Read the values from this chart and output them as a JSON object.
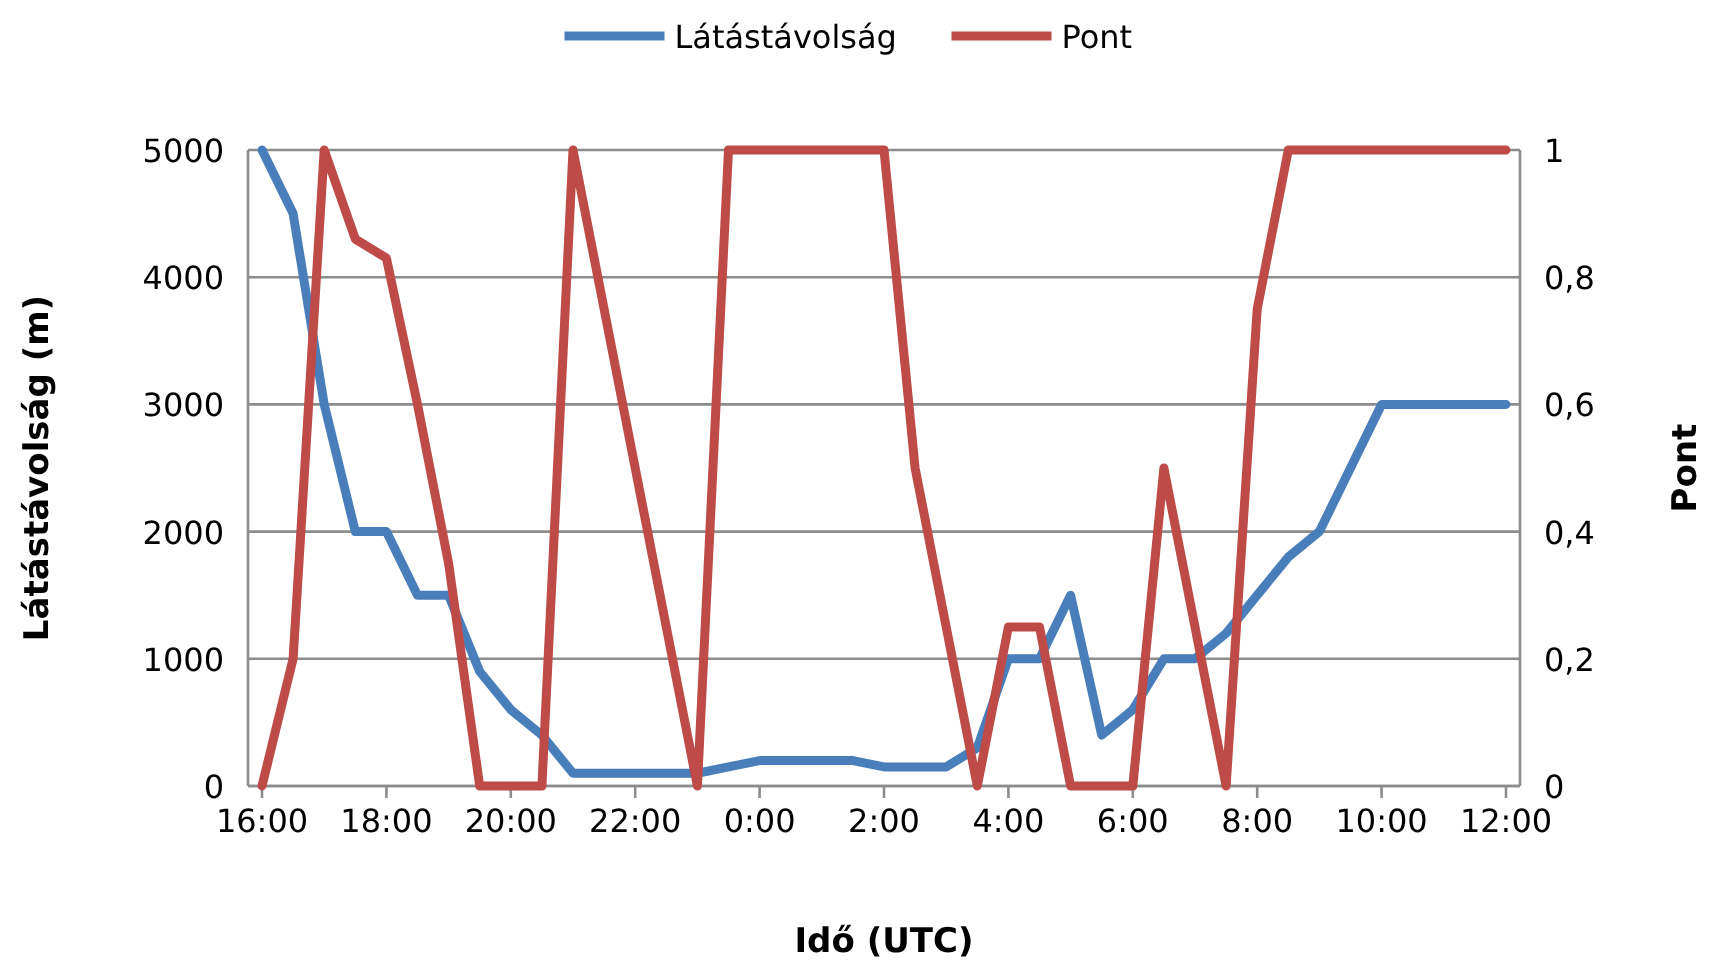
{
  "chart_data": {
    "type": "line",
    "xlabel": "Idő (UTC)",
    "ylabel": "Látástávolság (m)",
    "y2label": "Pont",
    "categories": [
      "16:00",
      null,
      null,
      null,
      "18:00",
      null,
      null,
      null,
      "20:00",
      null,
      null,
      null,
      "22:00",
      null,
      null,
      null,
      "0:00",
      null,
      null,
      null,
      "2:00",
      null,
      null,
      null,
      "4:00",
      null,
      null,
      null,
      "6:00",
      null,
      null,
      null,
      "8:00",
      null,
      null,
      null,
      "10:00",
      null,
      null,
      null,
      "12:00"
    ],
    "ylim": [
      0,
      5000
    ],
    "yticks": [
      0,
      1000,
      2000,
      3000,
      4000,
      5000
    ],
    "y2lim": [
      0,
      1
    ],
    "y2ticks": [
      {
        "value": 0,
        "label": "0"
      },
      {
        "value": 0.2,
        "label": "0,2"
      },
      {
        "value": 0.4,
        "label": "0,4"
      },
      {
        "value": 0.6,
        "label": "0,6"
      },
      {
        "value": 0.8,
        "label": "0,8"
      },
      {
        "value": 1,
        "label": "1"
      }
    ],
    "grid": "y",
    "legend": "top",
    "marker": "none",
    "line_style": "solid",
    "series": [
      {
        "name": "Látástávolság",
        "color": "#4a7ebb",
        "values": [
          5000,
          4500,
          3000,
          2000,
          2000,
          1500,
          1500,
          900,
          600,
          400,
          100,
          100,
          100,
          100,
          100,
          150,
          200,
          200,
          200,
          200,
          150,
          150,
          150,
          300,
          1000,
          1000,
          1500,
          400,
          600,
          1000,
          1000,
          1200,
          1500,
          1800,
          2000,
          2500,
          3000,
          3000,
          3000,
          3000,
          3000
        ]
      },
      {
        "name": "Pont",
        "color": "#be4b48",
        "axis": "y2",
        "values": [
          0,
          0.2,
          1,
          0.86,
          0.83,
          0.6,
          0.35,
          0,
          0,
          0,
          1,
          0.75,
          0.5,
          0.25,
          0,
          1,
          1,
          1,
          1,
          1,
          1,
          0.5,
          0.25,
          0,
          0.25,
          0.25,
          0,
          0,
          0,
          0.5,
          0.25,
          0,
          0.75,
          1,
          1,
          1,
          1,
          1,
          1,
          1,
          1
        ]
      }
    ]
  }
}
